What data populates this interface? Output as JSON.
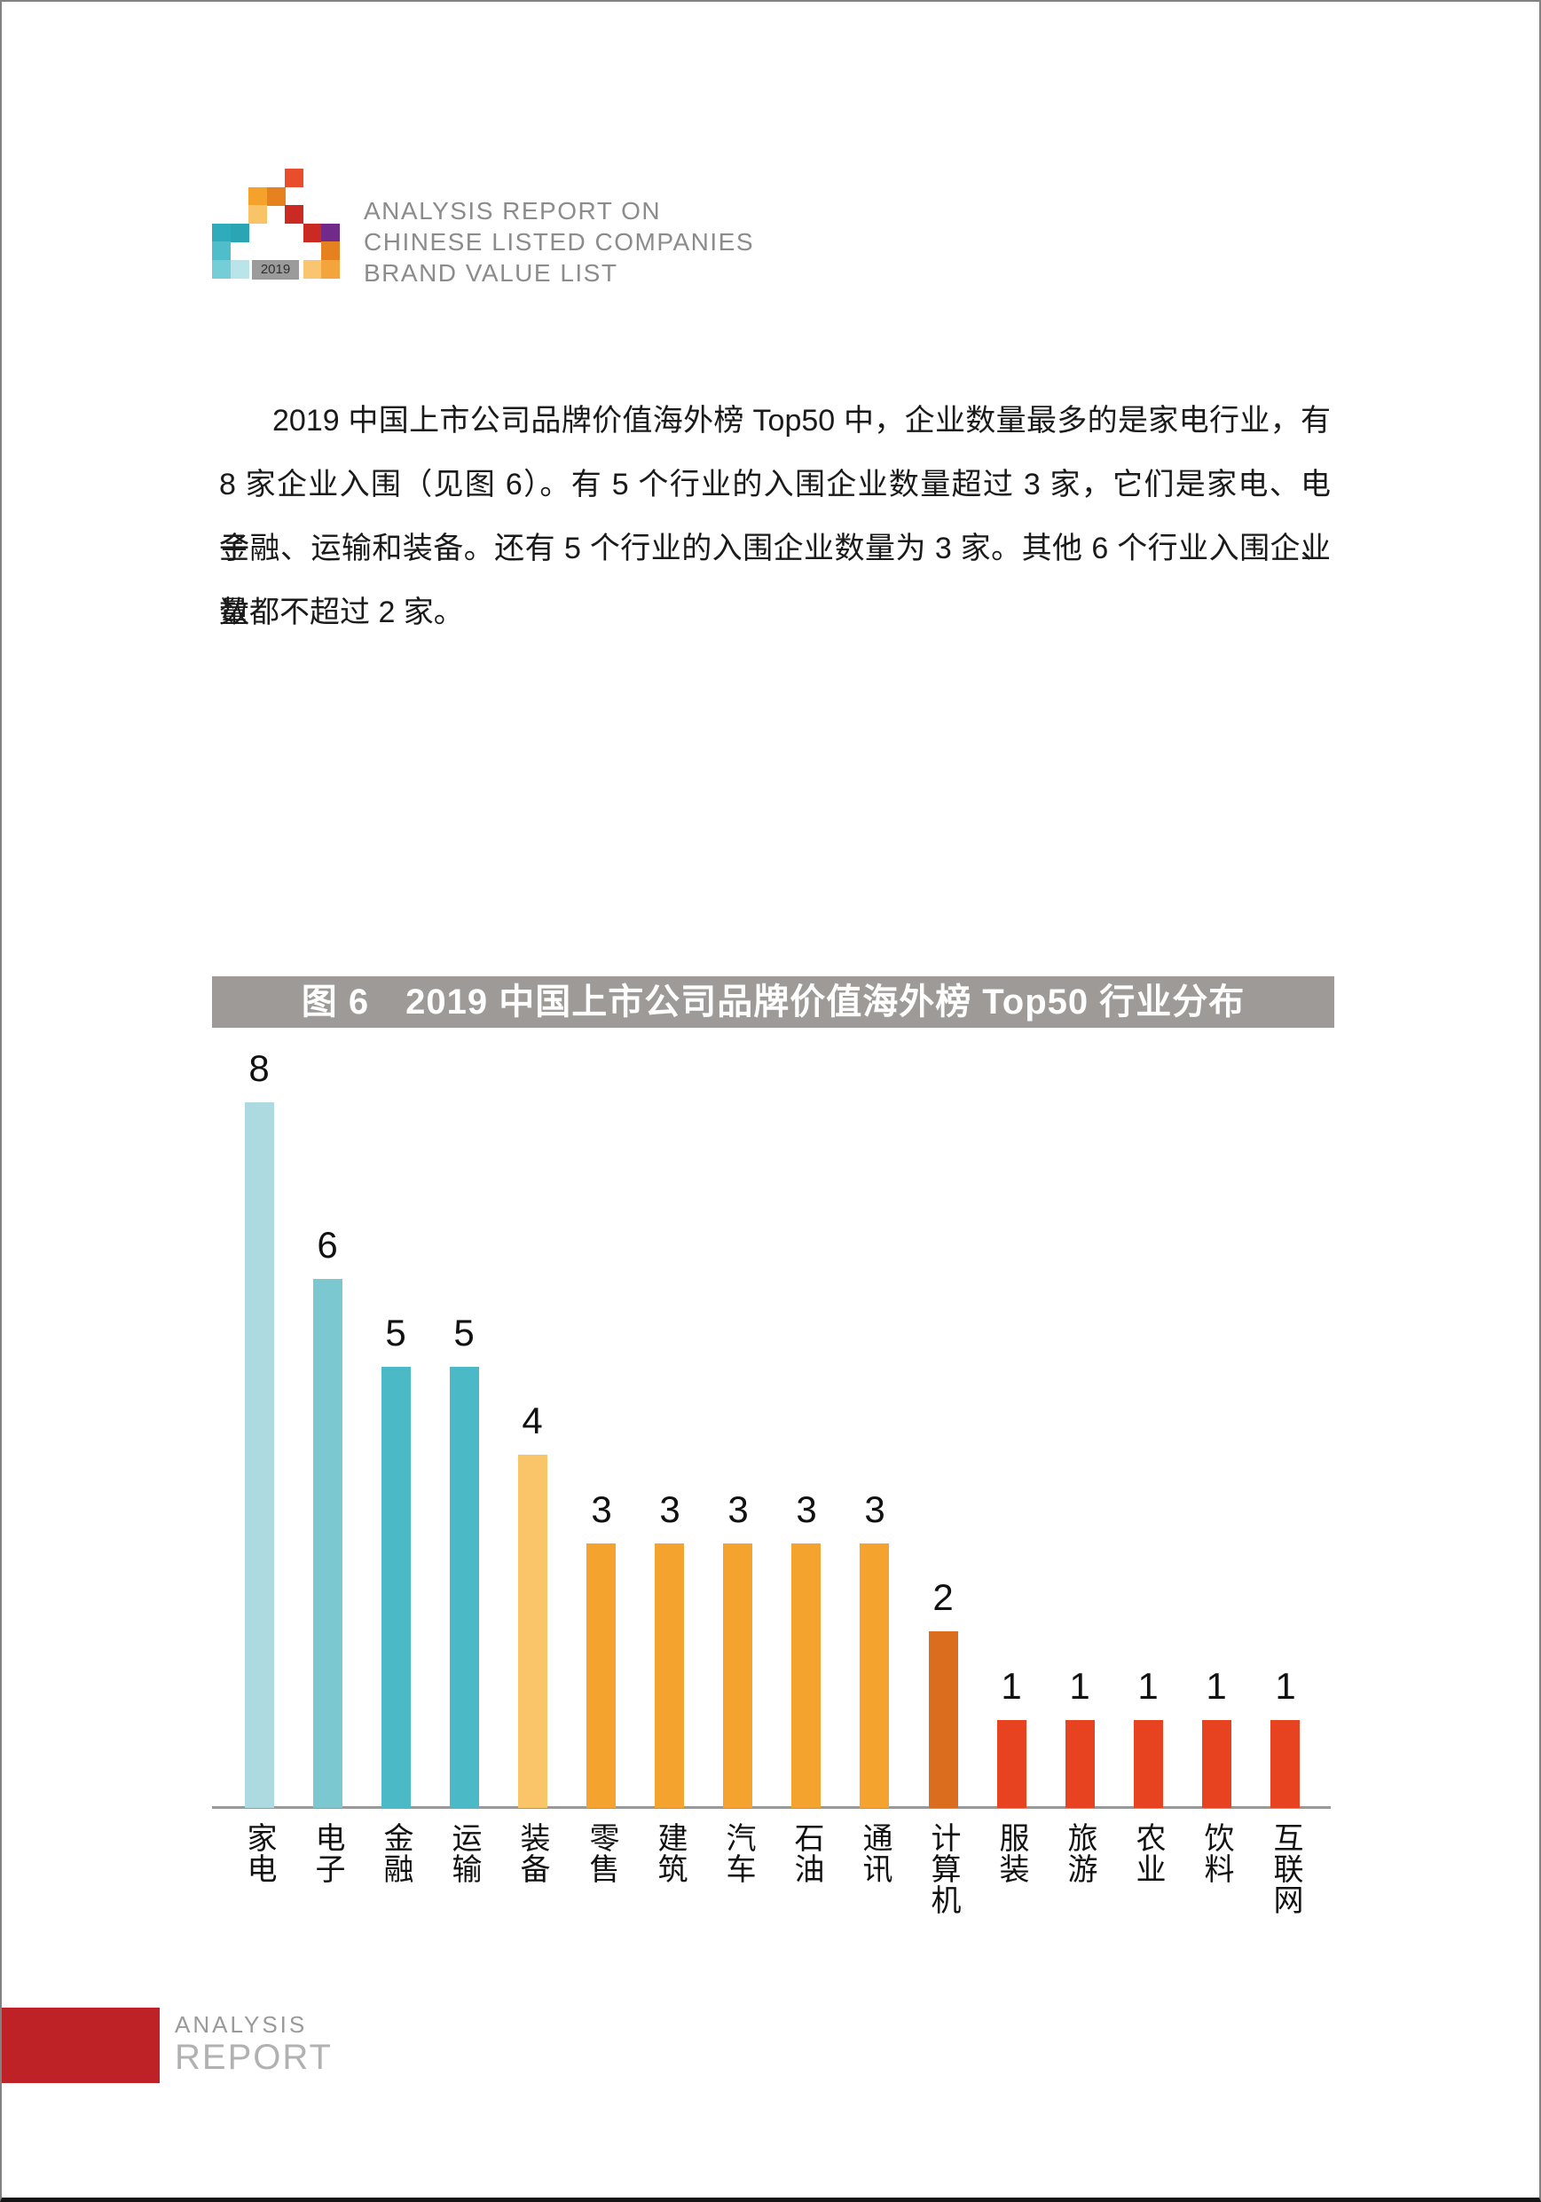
{
  "header": {
    "logo": {
      "year_label": "2019",
      "year_bg": "#9B9B9B",
      "squares": [
        {
          "row": 0,
          "col": 4,
          "color": "#E94D2B"
        },
        {
          "row": 1,
          "col": 2,
          "color": "#F4A22B"
        },
        {
          "row": 1,
          "col": 3,
          "color": "#E6811F"
        },
        {
          "row": 2,
          "col": 2,
          "color": "#F9C468"
        },
        {
          "row": 2,
          "col": 4,
          "color": "#CA2A22"
        },
        {
          "row": 3,
          "col": 0,
          "color": "#2FACBB"
        },
        {
          "row": 3,
          "col": 1,
          "color": "#29A5B4"
        },
        {
          "row": 3,
          "col": 5,
          "color": "#CA2A22"
        },
        {
          "row": 3,
          "col": 6,
          "color": "#712A8A"
        },
        {
          "row": 4,
          "col": 0,
          "color": "#50BDCA"
        },
        {
          "row": 4,
          "col": 6,
          "color": "#E5811E"
        },
        {
          "row": 5,
          "col": 0,
          "color": "#74CDD7"
        },
        {
          "row": 5,
          "col": 1,
          "color": "#B9E4EA"
        },
        {
          "row": 5,
          "col": 5,
          "color": "#FAC571"
        },
        {
          "row": 5,
          "col": 6,
          "color": "#F3A43D"
        }
      ]
    },
    "title_lines": [
      "ANALYSIS REPORT ON",
      "CHINESE LISTED COMPANIES",
      "BRAND VALUE LIST"
    ]
  },
  "paragraph": {
    "lines": [
      "2019 中国上市公司品牌价值海外榜 Top50 中，企业数量最多的是家电行业，有",
      "8 家企业入围（见图 6）。有 5 个行业的入围企业数量超过 3 家，它们是家电、电子、",
      "金融、运输和装备。还有 5 个行业的入围企业数量为 3 家。其他 6 个行业入围企业数",
      "量都不超过 2 家。"
    ]
  },
  "chart_data": {
    "type": "bar",
    "title": "图 6　2019 中国上市公司品牌价值海外榜 Top50 行业分布",
    "title_bg": "#9D9A97",
    "title_color": "#FFFFFF",
    "categories": [
      "家电",
      "电子",
      "金融",
      "运输",
      "装备",
      "零售",
      "建筑",
      "汽车",
      "石油",
      "通讯",
      "计算机",
      "服装",
      "旅游",
      "农业",
      "饮料",
      "互联网"
    ],
    "values": [
      8,
      6,
      5,
      5,
      4,
      3,
      3,
      3,
      3,
      3,
      2,
      1,
      1,
      1,
      1,
      1
    ],
    "bar_colors": [
      "#ADD9E0",
      "#7BC8D1",
      "#4CB9C6",
      "#4CB9C6",
      "#F9C568",
      "#F4A32E",
      "#F4A32E",
      "#F4A32E",
      "#F4A32E",
      "#F4A32E",
      "#DB6D1F",
      "#E74320",
      "#E74320",
      "#E74320",
      "#E74320",
      "#E74320"
    ],
    "xlabel": "",
    "ylabel": "",
    "ylim": [
      0,
      8.5
    ],
    "grid": false,
    "legend": false,
    "value_labels": true,
    "axis_color": "#999999"
  },
  "footer": {
    "line1": "ANALYSIS",
    "line2": "REPORT",
    "accent_color": "#BE2126"
  }
}
